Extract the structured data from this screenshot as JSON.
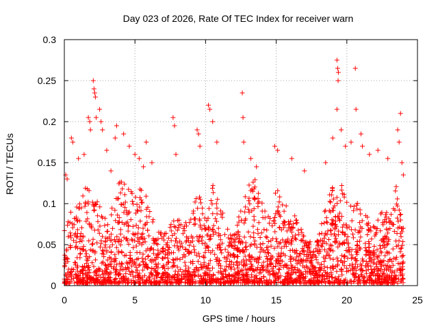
{
  "chart_data": {
    "type": "scatter",
    "title": "Day 023 of 2026, Rate Of TEC Index for receiver warn",
    "xlabel": "GPS time / hours",
    "ylabel": "ROTI / TECUs",
    "xlim": [
      0,
      25
    ],
    "ylim": [
      0,
      0.3
    ],
    "xticks": [
      "0",
      "5",
      "10",
      "15",
      "20",
      "25"
    ],
    "yticks": [
      "0",
      "0.05",
      "0.1",
      "0.15",
      "0.2",
      "0.25",
      "0.3"
    ],
    "grid": true,
    "marker": "plus",
    "color": "#ff0000",
    "series": [
      {
        "values_note": "",
        "points": [
          [
            0.1,
            0.135
          ],
          [
            0.2,
            0.13
          ],
          [
            0.5,
            0.18
          ],
          [
            0.6,
            0.175
          ],
          [
            1.0,
            0.155
          ],
          [
            1.4,
            0.16
          ],
          [
            1.7,
            0.205
          ],
          [
            1.8,
            0.2
          ],
          [
            1.85,
            0.19
          ],
          [
            2.05,
            0.25
          ],
          [
            2.1,
            0.24
          ],
          [
            2.15,
            0.235
          ],
          [
            2.2,
            0.23
          ],
          [
            2.25,
            0.205
          ],
          [
            2.5,
            0.215
          ],
          [
            2.6,
            0.2
          ],
          [
            2.7,
            0.19
          ],
          [
            3.0,
            0.165
          ],
          [
            3.3,
            0.14
          ],
          [
            3.6,
            0.18
          ],
          [
            3.7,
            0.195
          ],
          [
            4.2,
            0.185
          ],
          [
            4.6,
            0.17
          ],
          [
            5.0,
            0.16
          ],
          [
            5.3,
            0.155
          ],
          [
            5.6,
            0.145
          ],
          [
            5.8,
            0.175
          ],
          [
            6.2,
            0.15
          ],
          [
            7.7,
            0.205
          ],
          [
            7.8,
            0.195
          ],
          [
            7.9,
            0.16
          ],
          [
            9.4,
            0.19
          ],
          [
            9.5,
            0.185
          ],
          [
            9.6,
            0.17
          ],
          [
            10.2,
            0.22
          ],
          [
            10.3,
            0.215
          ],
          [
            10.5,
            0.2
          ],
          [
            10.8,
            0.175
          ],
          [
            12.6,
            0.235
          ],
          [
            12.65,
            0.205
          ],
          [
            12.7,
            0.175
          ],
          [
            13.2,
            0.155
          ],
          [
            13.6,
            0.145
          ],
          [
            14.9,
            0.17
          ],
          [
            15.1,
            0.165
          ],
          [
            16.1,
            0.155
          ],
          [
            17.0,
            0.14
          ],
          [
            18.5,
            0.15
          ],
          [
            19.0,
            0.18
          ],
          [
            19.3,
            0.275
          ],
          [
            19.35,
            0.265
          ],
          [
            19.4,
            0.26
          ],
          [
            19.38,
            0.25
          ],
          [
            19.3,
            0.215
          ],
          [
            19.6,
            0.19
          ],
          [
            19.9,
            0.17
          ],
          [
            20.3,
            0.175
          ],
          [
            20.6,
            0.265
          ],
          [
            20.65,
            0.215
          ],
          [
            21.0,
            0.185
          ],
          [
            21.1,
            0.17
          ],
          [
            21.6,
            0.16
          ],
          [
            22.2,
            0.165
          ],
          [
            22.9,
            0.155
          ],
          [
            23.6,
            0.19
          ],
          [
            23.7,
            0.175
          ],
          [
            23.8,
            0.21
          ],
          [
            23.9,
            0.15
          ],
          [
            24.0,
            0.135
          ]
        ]
      }
    ],
    "envelope_note": "",
    "envelope": [
      [
        0,
        0.07
      ],
      [
        0.5,
        0.09
      ],
      [
        1,
        0.1
      ],
      [
        1.5,
        0.12
      ],
      [
        2,
        0.11
      ],
      [
        2.5,
        0.1
      ],
      [
        3,
        0.08
      ],
      [
        3.5,
        0.1
      ],
      [
        4,
        0.13
      ],
      [
        4.5,
        0.12
      ],
      [
        5,
        0.11
      ],
      [
        5.5,
        0.13
      ],
      [
        6,
        0.09
      ],
      [
        6.5,
        0.07
      ],
      [
        7,
        0.06
      ],
      [
        7.5,
        0.07
      ],
      [
        8,
        0.09
      ],
      [
        8.5,
        0.07
      ],
      [
        9,
        0.09
      ],
      [
        9.5,
        0.11
      ],
      [
        10,
        0.08
      ],
      [
        10.5,
        0.12
      ],
      [
        11,
        0.1
      ],
      [
        11.5,
        0.07
      ],
      [
        12,
        0.06
      ],
      [
        12.5,
        0.09
      ],
      [
        13,
        0.12
      ],
      [
        13.5,
        0.13
      ],
      [
        14,
        0.1
      ],
      [
        14.5,
        0.08
      ],
      [
        15,
        0.12
      ],
      [
        15.5,
        0.1
      ],
      [
        16,
        0.09
      ],
      [
        16.5,
        0.08
      ],
      [
        17,
        0.06
      ],
      [
        17.5,
        0.05
      ],
      [
        18,
        0.06
      ],
      [
        18.5,
        0.1
      ],
      [
        19,
        0.12
      ],
      [
        19.5,
        0.13
      ],
      [
        20,
        0.11
      ],
      [
        20.5,
        0.12
      ],
      [
        21,
        0.1
      ],
      [
        21.5,
        0.08
      ],
      [
        22,
        0.07
      ],
      [
        22.5,
        0.1
      ],
      [
        23,
        0.08
      ],
      [
        23.5,
        0.12
      ],
      [
        24,
        0.07
      ]
    ]
  }
}
